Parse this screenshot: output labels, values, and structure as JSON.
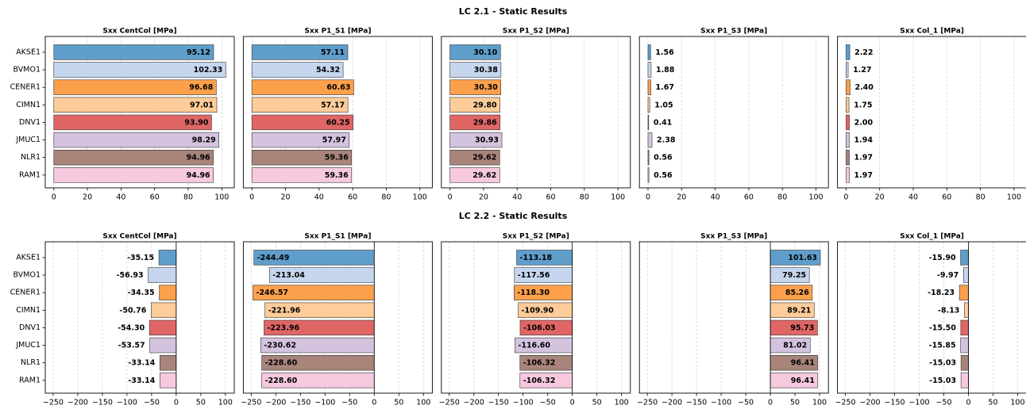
{
  "row_titles": [
    "LC 2.1 - Static Results",
    "LC 2.2 - Static Results"
  ],
  "chart_data": [
    {
      "type": "barh",
      "title": "Sxx CentCol [MPa]",
      "categories": [
        "AKSE1",
        "BVMO1",
        "CENER1",
        "CIMN1",
        "DNV1",
        "JMUC1",
        "NLR1",
        "RAM1"
      ],
      "values": [
        95.12,
        102.33,
        96.68,
        97.01,
        93.9,
        98.29,
        94.96,
        94.96
      ],
      "value_labels": [
        "95.12",
        "102.33",
        "96.68",
        "97.01",
        "93.90",
        "98.29",
        "94.96",
        "94.96"
      ],
      "colors": [
        "#5f9ecb",
        "#c5d6ee",
        "#fca04c",
        "#fdcc99",
        "#e06666",
        "#d3c3df",
        "#a8847b",
        "#f7c9df"
      ],
      "xlim": [
        -5.1,
        107.4
      ],
      "xticks": [
        0,
        20,
        40,
        60,
        80,
        100
      ],
      "grid": true
    },
    {
      "type": "barh",
      "title": "Sxx P1_S1 [MPa]",
      "values": [
        57.11,
        54.32,
        60.63,
        57.17,
        60.25,
        57.97,
        59.36,
        59.36
      ],
      "value_labels": [
        "57.11",
        "54.32",
        "60.63",
        "57.17",
        "60.25",
        "57.97",
        "59.36",
        "59.36"
      ],
      "colors": [
        "#5f9ecb",
        "#c5d6ee",
        "#fca04c",
        "#fdcc99",
        "#e06666",
        "#d3c3df",
        "#a8847b",
        "#f7c9df"
      ],
      "xlim": [
        -5.1,
        107.4
      ],
      "xticks": [
        0,
        20,
        40,
        60,
        80,
        100
      ],
      "grid": true
    },
    {
      "type": "barh",
      "title": "Sxx P1_S2 [MPa]",
      "values": [
        30.1,
        30.38,
        30.3,
        29.8,
        29.86,
        30.93,
        29.62,
        29.62
      ],
      "value_labels": [
        "30.10",
        "30.38",
        "30.30",
        "29.80",
        "29.86",
        "30.93",
        "29.62",
        "29.62"
      ],
      "colors": [
        "#5f9ecb",
        "#c5d6ee",
        "#fca04c",
        "#fdcc99",
        "#e06666",
        "#d3c3df",
        "#a8847b",
        "#f7c9df"
      ],
      "xlim": [
        -5.1,
        107.4
      ],
      "xticks": [
        0,
        20,
        40,
        60,
        80,
        100
      ],
      "grid": true
    },
    {
      "type": "barh",
      "title": "Sxx P1_S3 [MPa]",
      "values": [
        1.56,
        1.88,
        1.67,
        1.05,
        0.41,
        2.38,
        0.56,
        0.56
      ],
      "value_labels": [
        "1.56",
        "1.88",
        "1.67",
        "1.05",
        "0.41",
        "2.38",
        "0.56",
        "0.56"
      ],
      "colors": [
        "#5f9ecb",
        "#c5d6ee",
        "#fca04c",
        "#fdcc99",
        "#e06666",
        "#d3c3df",
        "#a8847b",
        "#f7c9df"
      ],
      "xlim": [
        -5.1,
        107.4
      ],
      "xticks": [
        0,
        20,
        40,
        60,
        80,
        100
      ],
      "grid": true
    },
    {
      "type": "barh",
      "title": "Sxx Col_1 [MPa]",
      "values": [
        2.22,
        1.27,
        2.4,
        1.75,
        2.0,
        1.94,
        1.97,
        1.97
      ],
      "value_labels": [
        "2.22",
        "1.27",
        "2.40",
        "1.75",
        "2.00",
        "1.94",
        "1.97",
        "1.97"
      ],
      "colors": [
        "#5f9ecb",
        "#c5d6ee",
        "#fca04c",
        "#fdcc99",
        "#e06666",
        "#d3c3df",
        "#a8847b",
        "#f7c9df"
      ],
      "xlim": [
        -5.1,
        107.4
      ],
      "xticks": [
        0,
        20,
        40,
        60,
        80,
        100
      ],
      "grid": true
    },
    {
      "type": "barh",
      "title": "Sxx CentCol [MPa]",
      "categories": [
        "AKSE1",
        "BVMO1",
        "CENER1",
        "CIMN1",
        "DNV1",
        "JMUC1",
        "NLR1",
        "RAM1"
      ],
      "values": [
        -35.15,
        -56.93,
        -34.35,
        -50.76,
        -54.3,
        -53.57,
        -33.14,
        -33.14
      ],
      "value_labels": [
        "-35.15",
        "-56.93",
        "-34.35",
        "-50.76",
        "-54.30",
        "-53.57",
        "-33.14",
        "-33.14"
      ],
      "colors": [
        "#5f9ecb",
        "#c5d6ee",
        "#fca04c",
        "#fdcc99",
        "#e06666",
        "#d3c3df",
        "#a8847b",
        "#f7c9df"
      ],
      "xlim": [
        -266,
        118
      ],
      "xticks": [
        {
          "value": -250,
          "label": "−250"
        },
        {
          "value": -200,
          "label": "−200"
        },
        {
          "value": -150,
          "label": "−150"
        },
        {
          "value": -100,
          "label": "−100"
        },
        {
          "value": -50,
          "label": "−50"
        },
        0,
        50,
        100
      ],
      "grid": true,
      "zero_line": true
    },
    {
      "type": "barh",
      "title": "Sxx P1_S1 [MPa]",
      "values": [
        -244.49,
        -213.04,
        -246.57,
        -221.96,
        -223.96,
        -230.62,
        -228.6,
        -228.6
      ],
      "value_labels": [
        "-244.49",
        "-213.04",
        "-246.57",
        "-221.96",
        "-223.96",
        "-230.62",
        "-228.60",
        "-228.60"
      ],
      "colors": [
        "#5f9ecb",
        "#c5d6ee",
        "#fca04c",
        "#fdcc99",
        "#e06666",
        "#d3c3df",
        "#a8847b",
        "#f7c9df"
      ],
      "xlim": [
        -266,
        118
      ],
      "xticks": [
        {
          "value": -250,
          "label": "−250"
        },
        {
          "value": -200,
          "label": "−200"
        },
        {
          "value": -150,
          "label": "−150"
        },
        {
          "value": -100,
          "label": "−100"
        },
        {
          "value": -50,
          "label": "−50"
        },
        0,
        50,
        100
      ],
      "grid": true,
      "zero_line": true
    },
    {
      "type": "barh",
      "title": "Sxx P1_S2 [MPa]",
      "values": [
        -113.18,
        -117.56,
        -118.3,
        -109.9,
        -106.03,
        -116.6,
        -106.32,
        -106.32
      ],
      "value_labels": [
        "-113.18",
        "-117.56",
        "-118.30",
        "-109.90",
        "-106.03",
        "-116.60",
        "-106.32",
        "-106.32"
      ],
      "colors": [
        "#5f9ecb",
        "#c5d6ee",
        "#fca04c",
        "#fdcc99",
        "#e06666",
        "#d3c3df",
        "#a8847b",
        "#f7c9df"
      ],
      "xlim": [
        -266,
        118
      ],
      "xticks": [
        {
          "value": -250,
          "label": "−250"
        },
        {
          "value": -200,
          "label": "−200"
        },
        {
          "value": -150,
          "label": "−150"
        },
        {
          "value": -100,
          "label": "−100"
        },
        {
          "value": -50,
          "label": "−50"
        },
        0,
        50,
        100
      ],
      "grid": true,
      "zero_line": true
    },
    {
      "type": "barh",
      "title": "Sxx P1_S3 [MPa]",
      "values": [
        101.63,
        79.25,
        85.26,
        89.21,
        95.73,
        81.02,
        96.41,
        96.41
      ],
      "value_labels": [
        "101.63",
        "79.25",
        "85.26",
        "89.21",
        "95.73",
        "81.02",
        "96.41",
        "96.41"
      ],
      "colors": [
        "#5f9ecb",
        "#c5d6ee",
        "#fca04c",
        "#fdcc99",
        "#e06666",
        "#d3c3df",
        "#a8847b",
        "#f7c9df"
      ],
      "xlim": [
        -266,
        118
      ],
      "xticks": [
        {
          "value": -250,
          "label": "−250"
        },
        {
          "value": -200,
          "label": "−200"
        },
        {
          "value": -150,
          "label": "−150"
        },
        {
          "value": -100,
          "label": "−100"
        },
        {
          "value": -50,
          "label": "−50"
        },
        0,
        50,
        100
      ],
      "grid": true,
      "zero_line": true
    },
    {
      "type": "barh",
      "title": "Sxx Col_1 [MPa]",
      "values": [
        -15.9,
        -9.97,
        -18.23,
        -8.13,
        -15.5,
        -15.85,
        -15.03,
        -15.03
      ],
      "value_labels": [
        "-15.90",
        "-9.97",
        "-18.23",
        "-8.13",
        "-15.50",
        "-15.85",
        "-15.03",
        "-15.03"
      ],
      "colors": [
        "#5f9ecb",
        "#c5d6ee",
        "#fca04c",
        "#fdcc99",
        "#e06666",
        "#d3c3df",
        "#a8847b",
        "#f7c9df"
      ],
      "xlim": [
        -266,
        118
      ],
      "xticks": [
        {
          "value": -250,
          "label": "−250"
        },
        {
          "value": -200,
          "label": "−200"
        },
        {
          "value": -150,
          "label": "−150"
        },
        {
          "value": -100,
          "label": "−100"
        },
        {
          "value": -50,
          "label": "−50"
        },
        0,
        50,
        100
      ],
      "grid": true,
      "zero_line": true
    }
  ]
}
